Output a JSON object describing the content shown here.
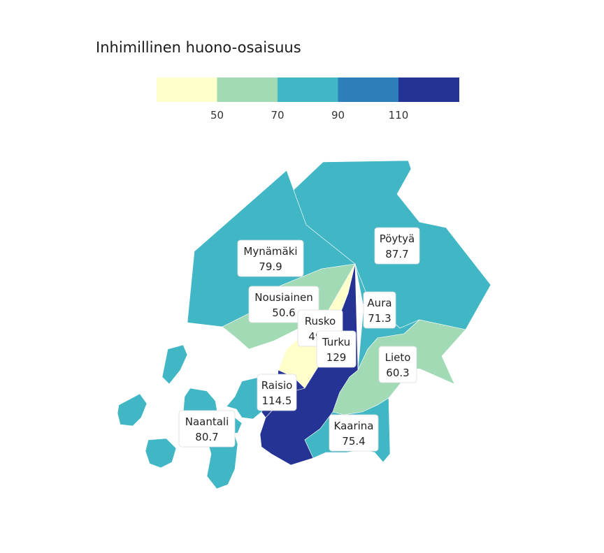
{
  "title": "Inhimillinen huono-osaisuus",
  "legend": {
    "breaks": [
      50,
      70,
      90,
      110
    ],
    "colors": [
      "#ffffcc",
      "#a1dab4",
      "#41b6c4",
      "#2c7fb8",
      "#253494"
    ]
  },
  "regions": [
    {
      "name": "Mynämäki",
      "value": 79.9
    },
    {
      "name": "Pöytyä",
      "value": 87.7
    },
    {
      "name": "Nousiainen",
      "value": 50.6
    },
    {
      "name": "Rusko",
      "value": 49.0
    },
    {
      "name": "Aura",
      "value": 71.3
    },
    {
      "name": "Turku",
      "value": 129
    },
    {
      "name": "Lieto",
      "value": 60.3
    },
    {
      "name": "Raisio",
      "value": 114.5
    },
    {
      "name": "Naantali",
      "value": 80.7
    },
    {
      "name": "Kaarina",
      "value": 75.4
    }
  ]
}
